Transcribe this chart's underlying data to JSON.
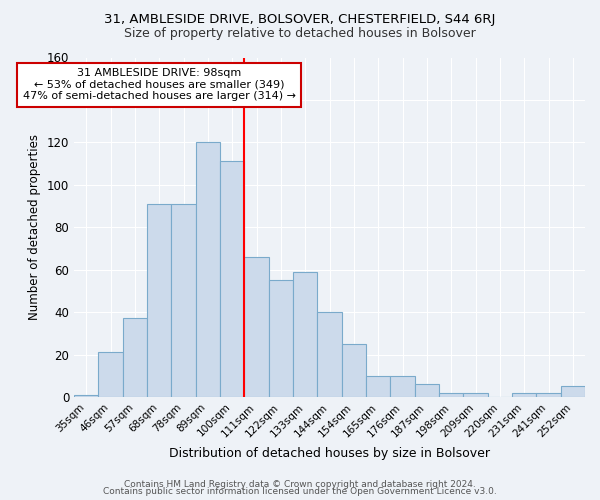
{
  "title1": "31, AMBLESIDE DRIVE, BOLSOVER, CHESTERFIELD, S44 6RJ",
  "title2": "Size of property relative to detached houses in Bolsover",
  "xlabel": "Distribution of detached houses by size in Bolsover",
  "ylabel": "Number of detached properties",
  "bin_labels": [
    "35sqm",
    "46sqm",
    "57sqm",
    "68sqm",
    "78sqm",
    "89sqm",
    "100sqm",
    "111sqm",
    "122sqm",
    "133sqm",
    "144sqm",
    "154sqm",
    "165sqm",
    "176sqm",
    "187sqm",
    "198sqm",
    "209sqm",
    "220sqm",
    "231sqm",
    "241sqm",
    "252sqm"
  ],
  "bar_heights": [
    1,
    21,
    37,
    91,
    91,
    120,
    111,
    66,
    55,
    59,
    40,
    25,
    10,
    10,
    6,
    2,
    2,
    0,
    2,
    2,
    5
  ],
  "bar_color": "#ccdaeb",
  "bar_edge_color": "#7aaacb",
  "red_line_x": 6.5,
  "annotation_line1": "31 AMBLESIDE DRIVE: 98sqm",
  "annotation_line2": "← 53% of detached houses are smaller (349)",
  "annotation_line3": "47% of semi-detached houses are larger (314) →",
  "annotation_box_color": "#ffffff",
  "annotation_box_edge": "#cc0000",
  "ylim": [
    0,
    160
  ],
  "yticks": [
    0,
    20,
    40,
    60,
    80,
    100,
    120,
    140,
    160
  ],
  "footer1": "Contains HM Land Registry data © Crown copyright and database right 2024.",
  "footer2": "Contains public sector information licensed under the Open Government Licence v3.0.",
  "bg_color": "#eef2f7",
  "grid_color": "#ffffff"
}
